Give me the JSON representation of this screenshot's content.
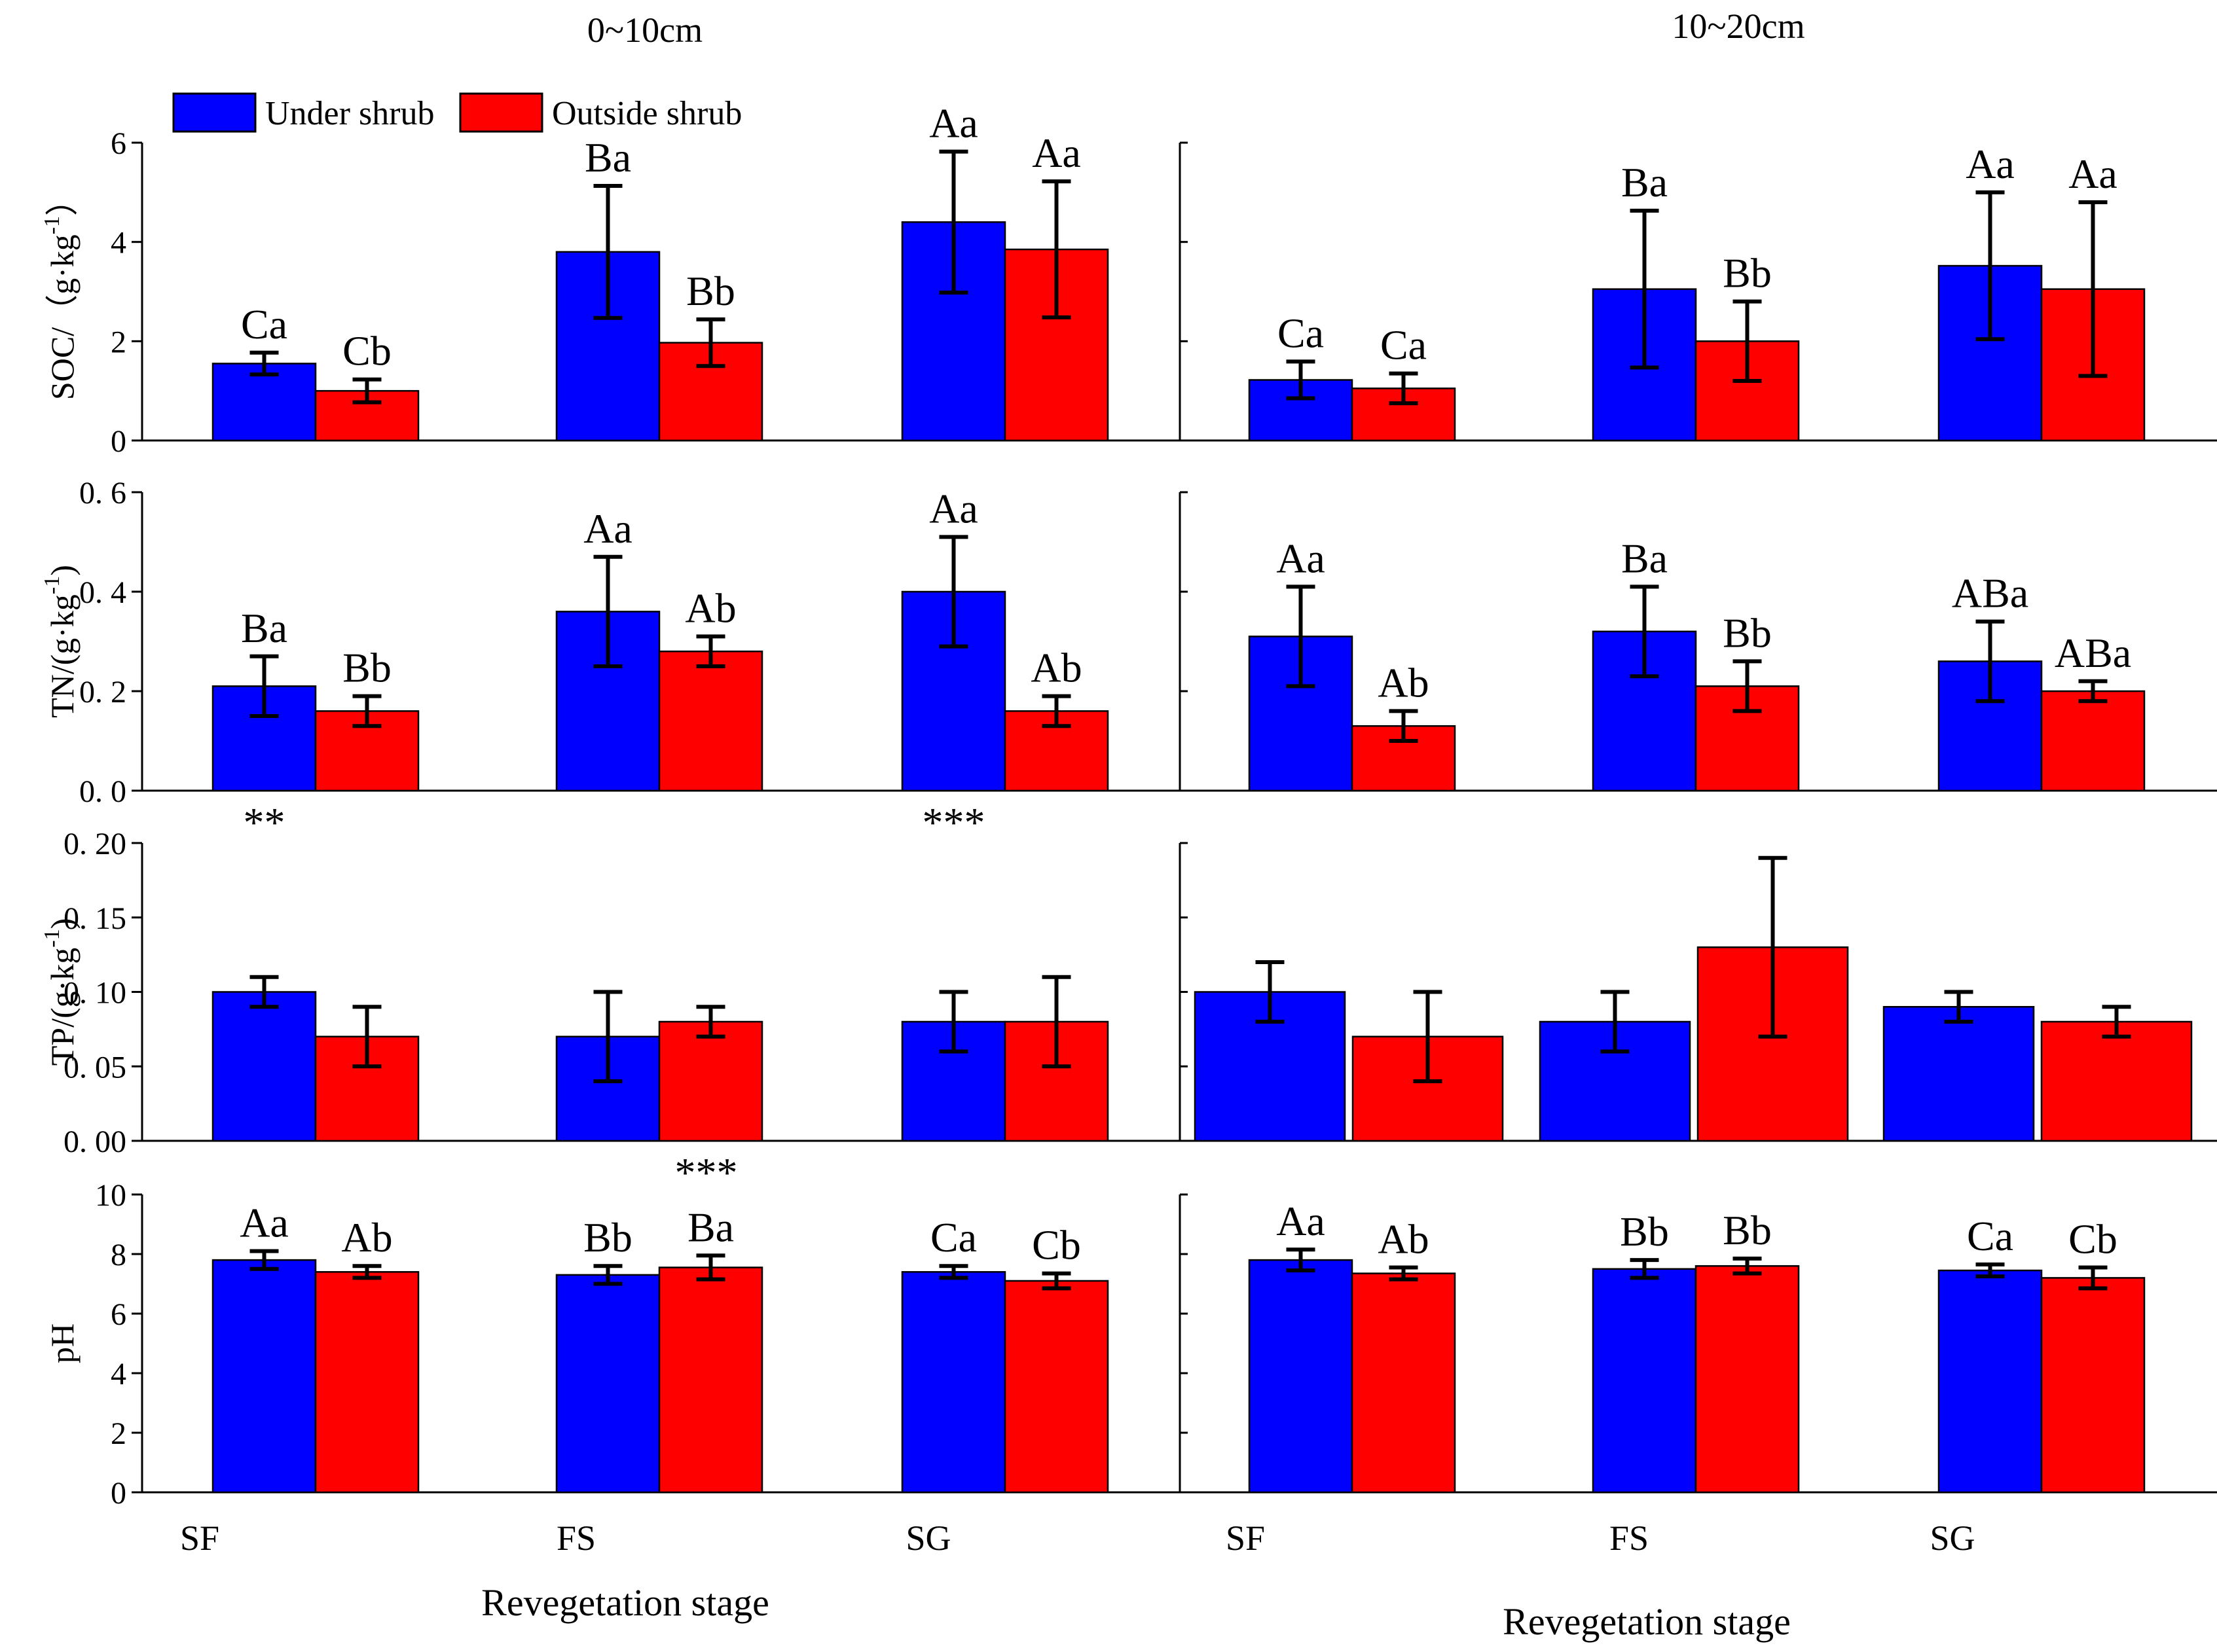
{
  "chart_data": {
    "type": "bar",
    "categories": [
      "SF",
      "FS",
      "SG"
    ],
    "legend": {
      "position": "top-left",
      "entries": [
        {
          "name": "Under shrub",
          "color": "#0000FF"
        },
        {
          "name": "Outside shrub",
          "color": "#FF0000"
        }
      ]
    },
    "columns": [
      {
        "id": "c1",
        "title": "0~10cm",
        "xlabel": "Revegetation stage"
      },
      {
        "id": "c2",
        "title": "10~20cm",
        "xlabel": "Revegetation stage"
      }
    ],
    "panels": [
      {
        "id": "soc",
        "col": 0,
        "row": 0,
        "ylabel": "SOC/（g·kg",
        "ylabel_sup": "-1",
        "ylabel_close": "）",
        "ylim": [
          0,
          6
        ],
        "yticks": [
          0,
          2,
          4,
          6
        ],
        "tick_labels": [
          "0",
          "2",
          "4",
          "6"
        ],
        "series": [
          {
            "name": "Under shrub",
            "color": "#0000FF",
            "values": [
              1.55,
              3.8,
              4.4
            ],
            "errors": [
              0.22,
              1.33,
              1.42
            ],
            "labels": [
              "Ca",
              "Ba",
              "Aa"
            ]
          },
          {
            "name": "Outside shrub",
            "color": "#FF0000",
            "values": [
              1.0,
              1.97,
              3.85
            ],
            "errors": [
              0.23,
              0.47,
              1.37
            ],
            "labels": [
              "Cb",
              "Bb",
              "Aa"
            ]
          }
        ],
        "marks": []
      },
      {
        "id": "soc2",
        "col": 1,
        "row": 0,
        "ylim": [
          0,
          6
        ],
        "yticks": [
          0,
          2,
          4,
          6
        ],
        "series": [
          {
            "name": "Under shrub",
            "color": "#0000FF",
            "values": [
              1.22,
              3.05,
              3.52
            ],
            "errors": [
              0.37,
              1.58,
              1.48
            ],
            "labels": [
              "Ca",
              "Ba",
              "Aa"
            ]
          },
          {
            "name": "Outside shrub",
            "color": "#FF0000",
            "values": [
              1.05,
              2.0,
              3.05
            ],
            "errors": [
              0.3,
              0.8,
              1.75
            ],
            "labels": [
              "Ca",
              "Bb",
              "Aa"
            ]
          }
        ],
        "marks": []
      },
      {
        "id": "tn",
        "col": 0,
        "row": 1,
        "ylabel": "TN/(g·kg",
        "ylabel_sup": "-1",
        "ylabel_close": ")",
        "ylim": [
          0,
          0.6
        ],
        "yticks": [
          0,
          0.2,
          0.4,
          0.6
        ],
        "tick_labels": [
          "0. 0",
          "0. 2",
          "0. 4",
          "0. 6"
        ],
        "series": [
          {
            "name": "Under shrub",
            "color": "#0000FF",
            "values": [
              0.21,
              0.36,
              0.4
            ],
            "errors": [
              0.06,
              0.11,
              0.11
            ],
            "labels": [
              "Ba",
              "Aa",
              "Aa"
            ]
          },
          {
            "name": "Outside shrub",
            "color": "#FF0000",
            "values": [
              0.16,
              0.28,
              0.16
            ],
            "errors": [
              0.03,
              0.03,
              0.03
            ],
            "labels": [
              "Bb",
              "Ab",
              "Ab"
            ]
          }
        ],
        "marks": [
          {
            "text": "**",
            "category": 0
          },
          {
            "text": "***",
            "category": 2
          }
        ]
      },
      {
        "id": "tn2",
        "col": 1,
        "row": 1,
        "ylim": [
          0,
          0.6
        ],
        "yticks": [
          0,
          0.2,
          0.4,
          0.6
        ],
        "series": [
          {
            "name": "Under shrub",
            "color": "#0000FF",
            "values": [
              0.31,
              0.32,
              0.26
            ],
            "errors": [
              0.1,
              0.09,
              0.08
            ],
            "labels": [
              "Aa",
              "Ba",
              "ABa"
            ]
          },
          {
            "name": "Outside shrub",
            "color": "#FF0000",
            "values": [
              0.13,
              0.21,
              0.2
            ],
            "errors": [
              0.03,
              0.05,
              0.02
            ],
            "labels": [
              "Ab",
              "Bb",
              "ABa"
            ]
          }
        ],
        "marks": []
      },
      {
        "id": "tp",
        "col": 0,
        "row": 2,
        "ylabel": "TP/(g·kg",
        "ylabel_sup": "-1",
        "ylabel_close": ")",
        "ylim": [
          0,
          0.2
        ],
        "yticks": [
          0,
          0.05,
          0.1,
          0.15,
          0.2
        ],
        "tick_labels": [
          "0. 00",
          "0. 05",
          "0. 10",
          "0. 15",
          "0. 20"
        ],
        "series": [
          {
            "name": "Under shrub",
            "color": "#0000FF",
            "values": [
              0.1,
              0.07,
              0.08
            ],
            "errors": [
              0.01,
              0.03,
              0.02
            ],
            "labels": []
          },
          {
            "name": "Outside shrub",
            "color": "#FF0000",
            "values": [
              0.07,
              0.08,
              0.08
            ],
            "errors": [
              0.02,
              0.01,
              0.03
            ],
            "labels": []
          }
        ],
        "marks": [
          {
            "text": "***",
            "category": 1
          }
        ]
      },
      {
        "id": "tp2",
        "col": 1,
        "row": 2,
        "wide": true,
        "ylim": [
          0,
          0.2
        ],
        "yticks": [
          0,
          0.05,
          0.1,
          0.15,
          0.2
        ],
        "series": [
          {
            "name": "Under shrub",
            "color": "#0000FF",
            "values": [
              0.1,
              0.08,
              0.09
            ],
            "errors": [
              0.02,
              0.02,
              0.01
            ],
            "labels": []
          },
          {
            "name": "Outside shrub",
            "color": "#FF0000",
            "values": [
              0.07,
              0.13,
              0.08
            ],
            "errors": [
              0.03,
              0.06,
              0.01
            ],
            "labels": []
          }
        ],
        "marks": []
      },
      {
        "id": "ph",
        "col": 0,
        "row": 3,
        "ylabel": "pH",
        "ylabel_sup": "",
        "ylabel_close": "",
        "ylim": [
          0,
          10
        ],
        "yticks": [
          0,
          2,
          4,
          6,
          8,
          10
        ],
        "tick_labels": [
          "0",
          "2",
          "4",
          "6",
          "8",
          "10"
        ],
        "series": [
          {
            "name": "Under shrub",
            "color": "#0000FF",
            "values": [
              7.8,
              7.3,
              7.4
            ],
            "errors": [
              0.3,
              0.3,
              0.2
            ],
            "labels": [
              "Aa",
              "Bb",
              "Ca"
            ]
          },
          {
            "name": "Outside shrub",
            "color": "#FF0000",
            "values": [
              7.4,
              7.55,
              7.1
            ],
            "errors": [
              0.2,
              0.4,
              0.25
            ],
            "labels": [
              "Ab",
              "Ba",
              "Cb"
            ]
          }
        ],
        "marks": []
      },
      {
        "id": "ph2",
        "col": 1,
        "row": 3,
        "ylim": [
          0,
          10
        ],
        "yticks": [
          0,
          2,
          4,
          6,
          8,
          10
        ],
        "series": [
          {
            "name": "Under shrub",
            "color": "#0000FF",
            "values": [
              7.8,
              7.5,
              7.45
            ],
            "errors": [
              0.35,
              0.3,
              0.2
            ],
            "labels": [
              "Aa",
              "Bb",
              "Ca"
            ]
          },
          {
            "name": "Outside shrub",
            "color": "#FF0000",
            "values": [
              7.35,
              7.6,
              7.2
            ],
            "errors": [
              0.2,
              0.25,
              0.35
            ],
            "labels": [
              "Ab",
              "Bb",
              "Cb"
            ]
          }
        ],
        "marks": []
      }
    ]
  }
}
